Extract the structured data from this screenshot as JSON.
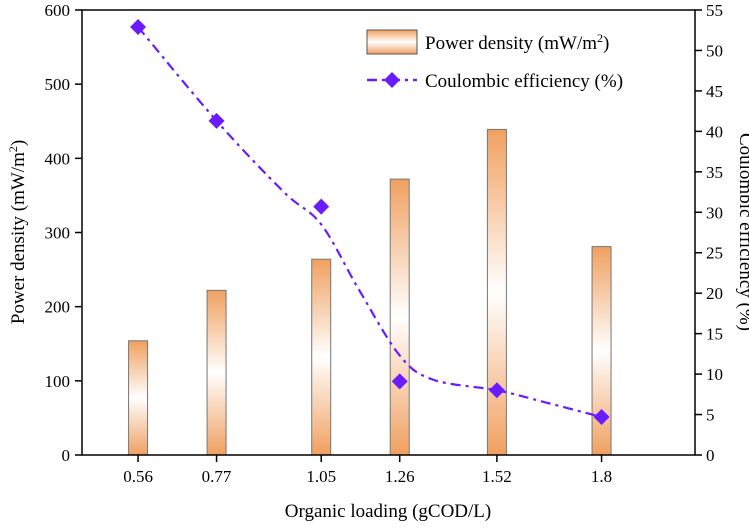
{
  "chart_data": {
    "type": "bar+line",
    "xlabel": "Organic loading (gCOD/L)",
    "ylabel_left": "Power density (mW/m",
    "ylabel_left_sup": "2",
    "ylabel_left_end": ")",
    "ylabel_right": "Coulombic efficiency (%)",
    "x": [
      0.56,
      0.77,
      1.05,
      1.26,
      1.52,
      1.8
    ],
    "x_tick_labels": [
      "0.56",
      "0.77",
      "1.05",
      "1.26",
      "1.52",
      "1.8"
    ],
    "xlim": [
      0.41,
      2.05
    ],
    "ylim_left": [
      0,
      600
    ],
    "y_left_ticks": [
      0,
      100,
      200,
      300,
      400,
      500,
      600
    ],
    "ylim_right": [
      0,
      55
    ],
    "y_right_ticks": [
      0,
      5,
      10,
      15,
      20,
      25,
      30,
      35,
      40,
      45,
      50,
      55
    ],
    "series": [
      {
        "name": "Power density (mW/m",
        "name_sup": "2",
        "name_end": ")",
        "type": "bar",
        "axis": "left",
        "color": "#f0a060",
        "values": [
          154,
          222,
          264,
          372,
          439,
          281
        ]
      },
      {
        "name": "Coulombic efficiency (%)",
        "type": "scatter",
        "axis": "right",
        "color": "#6a1cff",
        "values": [
          52.9,
          41.3,
          30.7,
          9.1,
          8.0,
          4.7
        ]
      }
    ],
    "fit_curve": {
      "axis": "right",
      "color": "#6a1cff",
      "x": [
        0.56,
        0.77,
        0.95,
        1.05,
        1.15,
        1.26,
        1.35,
        1.52,
        1.65,
        1.8
      ],
      "y": [
        52.9,
        41.3,
        32.5,
        28.5,
        20.5,
        12.3,
        9.3,
        8.0,
        6.5,
        4.7
      ]
    },
    "legend_position": "top-right",
    "grid": false
  }
}
